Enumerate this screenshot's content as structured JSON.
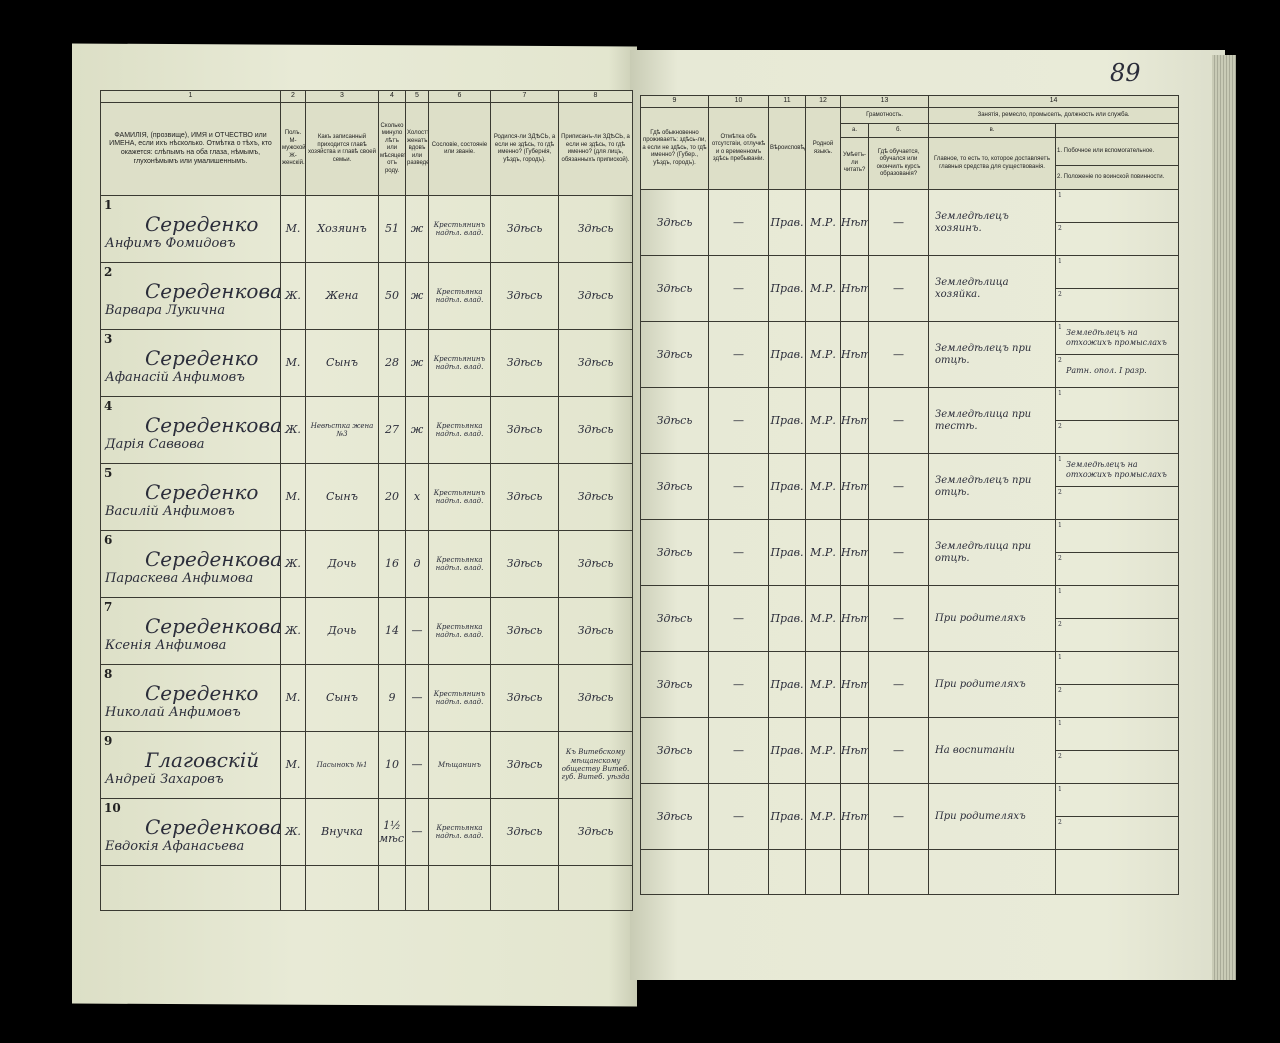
{
  "page_number": "89",
  "left_headers": {
    "numbers": [
      "1",
      "2",
      "3",
      "4",
      "5",
      "6",
      "7",
      "8"
    ],
    "c1": "ФАМИЛІЯ, (прозвище), ИМЯ и ОТЧЕСТВО или ИМЕНА, если ихъ нѣсколько. Отмѣтка о тѣхъ, кто окажется: слѣпымъ на оба глаза, нѣмымъ, глухонѣмымъ или умалишеннымъ.",
    "c2": "Полъ. М-мужской. Ж-женскій.",
    "c3": "Какъ записанный приходится главѣ хозяйства и главѣ своей семьи.",
    "c4": "Сколько минуло лѣтъ или мѣсяцевъ отъ роду.",
    "c5": "Холостъ, женатъ, вдовъ или разведенъ.",
    "c6": "Сословіе, состояніе или званіе.",
    "c7": "Родился-ли ЗДѢСЬ, а если не здѣсь, то гдѣ именно? (Губернія, уѣздъ, городъ).",
    "c8": "Приписанъ-ли ЗДѢСЬ, а если не здѣсь, то гдѣ именно? (для лицъ, обязанныхъ припиской)."
  },
  "right_headers": {
    "numbers": [
      "9",
      "10",
      "11",
      "12",
      "13",
      "14"
    ],
    "c9": "Гдѣ обыкновенно проживаетъ: здѣсь-ли, а если не здѣсь, то гдѣ именно? (Губер., уѣздъ, городъ).",
    "c10": "Отмѣтка объ отсутствіи, отлучкѣ и о временномъ здѣсь пребываніи.",
    "c11": "Вѣроисповѣданіе.",
    "c12": "Родной языкъ.",
    "c13": "Грамотность.",
    "c13a": "а.",
    "c13a_text": "Умѣетъ-ли читать?",
    "c13b": "б.",
    "c13b_text": "Гдѣ обучается, обучался или окончилъ курсъ образованія?",
    "c14": "Занятія, ремесло, промыселъ, должность или служба.",
    "c14a": "в.",
    "c14a_text": "Главное, то есть то, которое доставляетъ главныя средства для существованія.",
    "c14b1": "1. Побочное или вспомогательное.",
    "c14b2": "2. Положеніе по воинской повинности."
  },
  "rows": [
    {
      "n": "1",
      "surname": "Середенко",
      "given": "Анфимъ Фомидовъ",
      "sex": "М.",
      "relation": "Хозяинъ",
      "age": "51",
      "marital": "ж",
      "estate": "Крестьянинъ надѣл. влад.",
      "born": "Здѣсь",
      "registered": "Здѣсь",
      "residence": "Здѣсь",
      "absence": "—",
      "religion": "Прав.",
      "language": "М.Р.",
      "literate": "Нѣтъ",
      "education": "—",
      "occupation": "Земледѣлецъ хозяинъ.",
      "side": "",
      "military": ""
    },
    {
      "n": "2",
      "surname": "Середенкова",
      "given": "Варвара Лукична",
      "sex": "Ж.",
      "relation": "Жена",
      "age": "50",
      "marital": "ж",
      "estate": "Крестьянка надѣл. влад.",
      "born": "Здѣсь",
      "registered": "Здѣсь",
      "residence": "Здѣсь",
      "absence": "—",
      "religion": "Прав.",
      "language": "М.Р.",
      "literate": "Нѣтъ",
      "education": "—",
      "occupation": "Земледѣлица хозяйка.",
      "side": "",
      "military": ""
    },
    {
      "n": "3",
      "surname": "Середенко",
      "given": "Афанасій Анфимовъ",
      "sex": "М.",
      "relation": "Сынъ",
      "age": "28",
      "marital": "ж",
      "estate": "Крестьянинъ надѣл. влад.",
      "born": "Здѣсь",
      "registered": "Здѣсь",
      "residence": "Здѣсь",
      "absence": "—",
      "religion": "Прав.",
      "language": "М.Р.",
      "literate": "Нѣтъ",
      "education": "—",
      "occupation": "Земледѣлецъ при отцѣ.",
      "side": "Земледѣлецъ на отхожихъ промыслахъ",
      "military": "Ратн. опол. I разр."
    },
    {
      "n": "4",
      "surname": "Середенкова",
      "given": "Дарія Саввова",
      "sex": "Ж.",
      "relation": "Невѣстка жена №3",
      "age": "27",
      "marital": "ж",
      "estate": "Крестьянка надѣл. влад.",
      "born": "Здѣсь",
      "registered": "Здѣсь",
      "residence": "Здѣсь",
      "absence": "—",
      "religion": "Прав.",
      "language": "М.Р.",
      "literate": "Нѣтъ",
      "education": "—",
      "occupation": "Земледѣлица при тестѣ.",
      "side": "",
      "military": ""
    },
    {
      "n": "5",
      "surname": "Середенко",
      "given": "Василій Анфимовъ",
      "sex": "М.",
      "relation": "Сынъ",
      "age": "20",
      "marital": "х",
      "estate": "Крестьянинъ надѣл. влад.",
      "born": "Здѣсь",
      "registered": "Здѣсь",
      "residence": "Здѣсь",
      "absence": "—",
      "religion": "Прав.",
      "language": "М.Р.",
      "literate": "Нѣтъ",
      "education": "—",
      "occupation": "Земледѣлецъ при отцѣ.",
      "side": "Земледѣлецъ на отхожихъ промыслахъ",
      "military": ""
    },
    {
      "n": "6",
      "surname": "Середенкова",
      "given": "Параскева Анфимова",
      "sex": "Ж.",
      "relation": "Дочь",
      "age": "16",
      "marital": "д",
      "estate": "Крестьянка надѣл. влад.",
      "born": "Здѣсь",
      "registered": "Здѣсь",
      "residence": "Здѣсь",
      "absence": "—",
      "religion": "Прав.",
      "language": "М.Р.",
      "literate": "Нѣтъ",
      "education": "—",
      "occupation": "Земледѣлица при отцѣ.",
      "side": "",
      "military": ""
    },
    {
      "n": "7",
      "surname": "Середенкова",
      "given": "Ксенія Анфимова",
      "sex": "Ж.",
      "relation": "Дочь",
      "age": "14",
      "marital": "—",
      "estate": "Крестьянка надѣл. влад.",
      "born": "Здѣсь",
      "registered": "Здѣсь",
      "residence": "Здѣсь",
      "absence": "—",
      "religion": "Прав.",
      "language": "М.Р.",
      "literate": "Нѣтъ",
      "education": "—",
      "occupation": "При родителяхъ",
      "side": "",
      "military": ""
    },
    {
      "n": "8",
      "surname": "Середенко",
      "given": "Николай Анфимовъ",
      "sex": "М.",
      "relation": "Сынъ",
      "age": "9",
      "marital": "—",
      "estate": "Крестьянинъ надѣл. влад.",
      "born": "Здѣсь",
      "registered": "Здѣсь",
      "residence": "Здѣсь",
      "absence": "—",
      "religion": "Прав.",
      "language": "М.Р.",
      "literate": "Нѣтъ",
      "education": "—",
      "occupation": "При родителяхъ",
      "side": "",
      "military": ""
    },
    {
      "n": "9",
      "surname": "Глаговскій",
      "given": "Андрей Захаровъ",
      "sex": "М.",
      "relation": "Пасынокъ №1",
      "age": "10",
      "marital": "—",
      "estate": "Мѣщанинъ",
      "born": "Здѣсь",
      "registered": "Къ Витебскому мѣщанскому обществу Витеб. губ. Витеб. уѣзда",
      "residence": "Здѣсь",
      "absence": "—",
      "religion": "Прав.",
      "language": "М.Р.",
      "literate": "Нѣтъ",
      "education": "—",
      "occupation": "На воспитаніи",
      "side": "",
      "military": ""
    },
    {
      "n": "10",
      "surname": "Середенкова",
      "given": "Евдокія Афанасьева",
      "sex": "Ж.",
      "relation": "Внучка",
      "age": "1½ мѣс.",
      "marital": "—",
      "estate": "Крестьянка надѣл. влад.",
      "born": "Здѣсь",
      "registered": "Здѣсь",
      "residence": "Здѣсь",
      "absence": "—",
      "religion": "Прав.",
      "language": "М.Р.",
      "literate": "Нѣтъ",
      "education": "—",
      "occupation": "При родителяхъ",
      "side": "",
      "military": ""
    }
  ],
  "sub_labels": [
    "1",
    "2"
  ]
}
